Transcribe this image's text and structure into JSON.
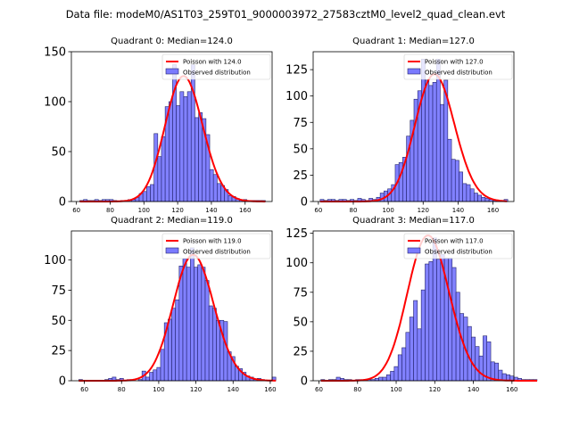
{
  "suptitle": "Data file: modeM0/AS1T03_259T01_9000003972_27583cztM0_level2_quad_clean.evt",
  "colors": {
    "bar_fill": "#7a7aff",
    "bar_edge": "#23236b",
    "poisson_line": "#ff0000"
  },
  "chart_data": [
    {
      "type": "bar",
      "title": "Quadrant 0: Median=124.0",
      "median": 124.0,
      "legend": [
        "Poisson with 124.0",
        "Observed distribution"
      ],
      "legend_position": "top-right",
      "xlim": [
        57,
        176
      ],
      "ylim": [
        0,
        150
      ],
      "xticks": [
        60,
        80,
        100,
        120,
        140,
        160
      ],
      "yticks": [
        0,
        50,
        100,
        150
      ],
      "bin_start": 62,
      "bin_width": 2.2,
      "values": [
        1,
        2,
        1,
        1,
        2,
        1,
        2,
        2,
        2,
        1,
        0,
        1,
        1,
        2,
        2,
        4,
        8,
        10,
        15,
        17,
        68,
        45,
        65,
        95,
        100,
        137,
        96,
        110,
        105,
        110,
        137,
        84,
        89,
        83,
        67,
        32,
        27,
        18,
        16,
        12,
        6,
        5,
        3,
        2,
        2,
        1,
        1,
        1,
        1,
        1
      ],
      "poisson_scale": 1.0
    },
    {
      "type": "bar",
      "title": "Quadrant 1: Median=127.0",
      "median": 127.0,
      "legend": [
        "Poisson with 127.0",
        "Observed distribution"
      ],
      "legend_position": "top-right",
      "xlim": [
        57,
        172
      ],
      "ylim": [
        0,
        142
      ],
      "xticks": [
        60,
        80,
        100,
        120,
        140,
        160
      ],
      "yticks": [
        0,
        25,
        50,
        75,
        100,
        125
      ],
      "bin_start": 61,
      "bin_width": 2.15,
      "values": [
        2,
        1,
        2,
        2,
        1,
        2,
        2,
        1,
        2,
        1,
        3,
        2,
        1,
        3,
        2,
        4,
        8,
        10,
        12,
        16,
        35,
        37,
        42,
        62,
        77,
        97,
        105,
        135,
        115,
        110,
        113,
        135,
        92,
        115,
        59,
        40,
        39,
        28,
        17,
        16,
        12,
        8,
        6,
        4,
        3,
        2,
        1,
        1,
        1,
        2
      ],
      "poisson_scale": 1.0
    },
    {
      "type": "bar",
      "title": "Quadrant 2: Median=119.0",
      "median": 119.0,
      "legend": [
        "Poisson with 119.0",
        "Observed distribution"
      ],
      "legend_position": "top-right",
      "xlim": [
        53,
        161
      ],
      "ylim": [
        0,
        124
      ],
      "xticks": [
        60,
        80,
        100,
        120,
        140,
        160
      ],
      "yticks": [
        0,
        25,
        50,
        75,
        100
      ],
      "bin_start": 57,
      "bin_width": 2.0,
      "values": [
        1,
        0,
        0,
        0,
        0,
        0,
        0,
        1,
        2,
        3,
        1,
        2,
        0,
        1,
        0,
        0,
        1,
        8,
        3,
        7,
        9,
        11,
        26,
        48,
        51,
        60,
        67,
        95,
        101,
        94,
        110,
        94,
        96,
        94,
        83,
        62,
        60,
        50,
        50,
        49,
        24,
        20,
        12,
        10,
        7,
        4,
        3,
        1,
        2,
        1,
        0,
        0,
        3
      ],
      "poisson_scale": 1.0
    },
    {
      "type": "bar",
      "title": "Quadrant 3: Median=117.0",
      "median": 117.0,
      "legend": [
        "Poisson with 117.0",
        "Observed distribution"
      ],
      "legend_position": "top-right",
      "xlim": [
        57,
        161
      ],
      "ylim": [
        0,
        127
      ],
      "xticks": [
        60,
        80,
        100,
        120,
        140,
        160
      ],
      "yticks": [
        0,
        25,
        50,
        75,
        100,
        125
      ],
      "bin_start": 61,
      "bin_width": 2.0,
      "values": [
        1,
        0,
        1,
        1,
        3,
        2,
        1,
        1,
        0,
        1,
        1,
        1,
        1,
        1,
        2,
        3,
        3,
        5,
        8,
        12,
        22,
        28,
        41,
        54,
        68,
        44,
        77,
        99,
        101,
        121,
        103,
        107,
        104,
        104,
        96,
        75,
        57,
        54,
        46,
        37,
        29,
        21,
        38,
        33,
        16,
        15,
        9,
        6,
        5,
        4,
        3,
        2,
        1,
        1,
        1,
        1
      ],
      "poisson_scale": 1.0
    }
  ]
}
